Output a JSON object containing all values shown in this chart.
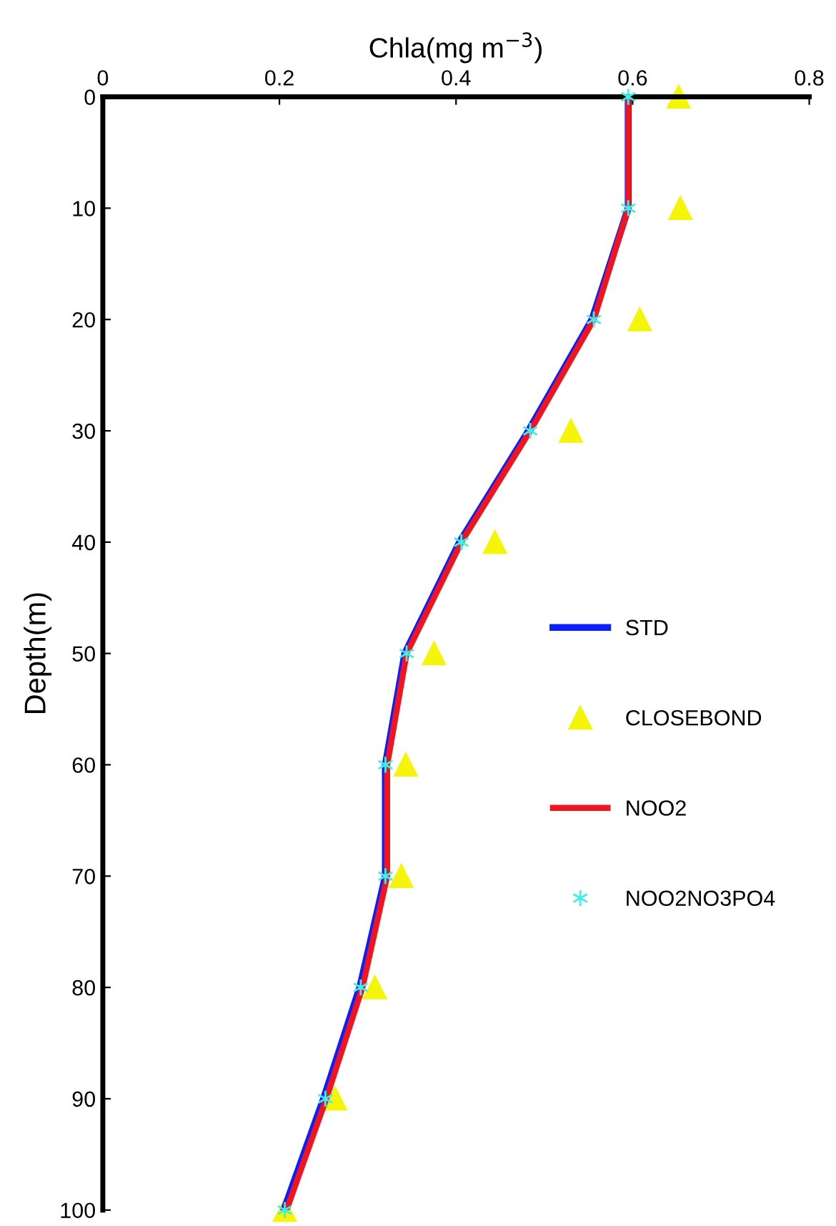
{
  "chart_data": {
    "type": "line",
    "xlabel": "Chla(mg m$^{−3}$)",
    "ylabel": "Depth(m)",
    "x": [
      0,
      10,
      20,
      30,
      40,
      50,
      60,
      70,
      80,
      90,
      100
    ],
    "orientation": "horizontal",
    "xlim": [
      0,
      0.8
    ],
    "xticks": [
      0,
      0.2,
      0.4,
      0.6,
      0.8
    ],
    "ylim": [
      100,
      0
    ],
    "yticks": [
      0,
      10,
      20,
      30,
      40,
      50,
      60,
      70,
      80,
      90,
      100
    ],
    "grid": false,
    "legend": "right",
    "series": [
      {
        "name": "STD",
        "color": "#0a1eff",
        "marker": "none",
        "values": [
          0.595,
          0.595,
          0.554,
          0.482,
          0.404,
          0.342,
          0.32,
          0.32,
          0.291,
          0.25,
          0.205
        ]
      },
      {
        "name": "CLOSEBOND",
        "type": "scatter",
        "color": "#f5f50a",
        "marker": "triangle",
        "values": [
          0.652,
          0.654,
          0.608,
          0.53,
          0.444,
          0.375,
          0.343,
          0.338,
          0.308,
          0.263,
          0.206
        ]
      },
      {
        "name": "NOO2",
        "color": "#f0141e",
        "marker": "none",
        "values": [
          0.595,
          0.595,
          0.556,
          0.484,
          0.406,
          0.344,
          0.322,
          0.322,
          0.294,
          0.253,
          0.208
        ]
      },
      {
        "name": "NOO2NO3PO4",
        "type": "scatter",
        "color": "#3cf0f0",
        "marker": "cross",
        "values": [
          0.595,
          0.595,
          0.556,
          0.484,
          0.406,
          0.344,
          0.32,
          0.32,
          0.292,
          0.252,
          0.206
        ]
      }
    ]
  }
}
